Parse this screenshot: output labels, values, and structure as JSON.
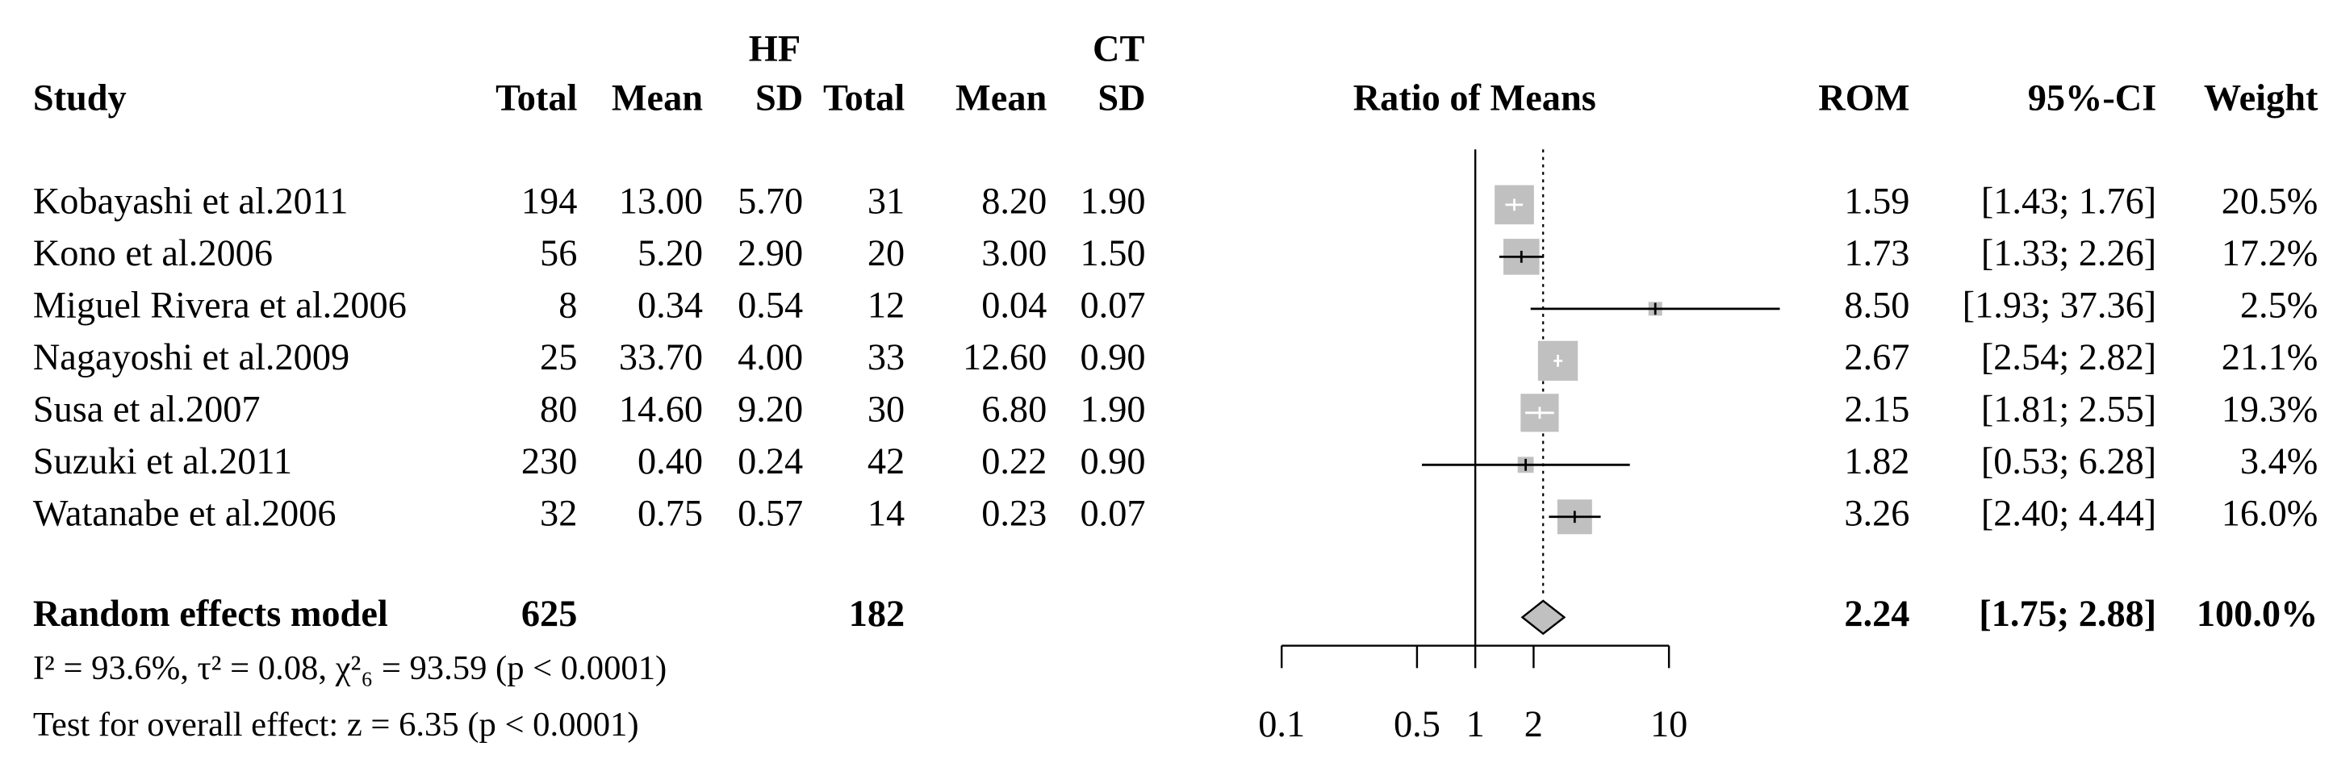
{
  "chart_data": {
    "type": "forest",
    "group_labels": [
      "HF",
      "CT"
    ],
    "headers": [
      "Study",
      "Total",
      "Mean",
      "SD",
      "Total",
      "Mean",
      "SD",
      "Ratio of Means",
      "ROM",
      "95%-CI",
      "Weight"
    ],
    "studies": [
      "Kobayashi et al.2011",
      "Kono et al.2006",
      "Miguel Rivera et al.2006",
      "Nagayoshi et al.2009",
      "Susa et al.2007",
      "Suzuki et al.2011",
      "Watanabe et al.2006"
    ],
    "rows": [
      [
        "194",
        "13.00",
        "5.70",
        "31",
        "8.20",
        "1.90"
      ],
      [
        "56",
        "5.20",
        "2.90",
        "20",
        "3.00",
        "1.50"
      ],
      [
        "8",
        "0.34",
        "0.54",
        "12",
        "0.04",
        "0.07"
      ],
      [
        "25",
        "33.70",
        "4.00",
        "33",
        "12.60",
        "0.90"
      ],
      [
        "80",
        "14.60",
        "9.20",
        "30",
        "6.80",
        "1.90"
      ],
      [
        "230",
        "0.40",
        "0.24",
        "42",
        "0.22",
        "0.90"
      ],
      [
        "32",
        "0.75",
        "0.57",
        "14",
        "0.23",
        "0.07"
      ]
    ],
    "rom": [
      1.59,
      1.73,
      8.5,
      2.67,
      2.15,
      1.82,
      3.26
    ],
    "rom_labels": [
      "1.59",
      "1.73",
      "8.50",
      "2.67",
      "2.15",
      "1.82",
      "3.26"
    ],
    "ci_low": [
      1.43,
      1.33,
      1.93,
      2.54,
      1.81,
      0.53,
      2.4
    ],
    "ci_high": [
      1.76,
      2.26,
      37.36,
      2.82,
      2.55,
      6.28,
      4.44
    ],
    "ci_labels": [
      "[1.43; 1.76]",
      "[1.33; 2.26]",
      "[1.93; 37.36]",
      "[2.54; 2.82]",
      "[1.81; 2.55]",
      "[0.53; 6.28]",
      "[2.40; 4.44]"
    ],
    "weights": [
      20.5,
      17.2,
      2.5,
      21.1,
      19.3,
      3.4,
      16.0
    ],
    "weight_labels": [
      "20.5%",
      "17.2%",
      "2.5%",
      "21.1%",
      "19.3%",
      "3.4%",
      "16.0%"
    ],
    "summary": {
      "label": "Random effects model",
      "total_e": 625,
      "total_c": 182,
      "rom": 2.24,
      "ci_low": 1.75,
      "ci_high": 2.88,
      "ci_label": "[1.75; 2.88]",
      "weight": 100,
      "weight_label": "100.0%"
    },
    "heterogeneity": "I² = 93.6%, τ² = 0.08, χ²₆ = 93.59 (p < 0.0001)",
    "overall_effect": "Test for overall effect: z = 6.35 (p < 0.0001)",
    "xlim": [
      0.1,
      10
    ],
    "xticks": [
      0.1,
      0.5,
      1,
      2,
      10
    ],
    "log_scale": true,
    "box_color": "#c0c0c0"
  }
}
